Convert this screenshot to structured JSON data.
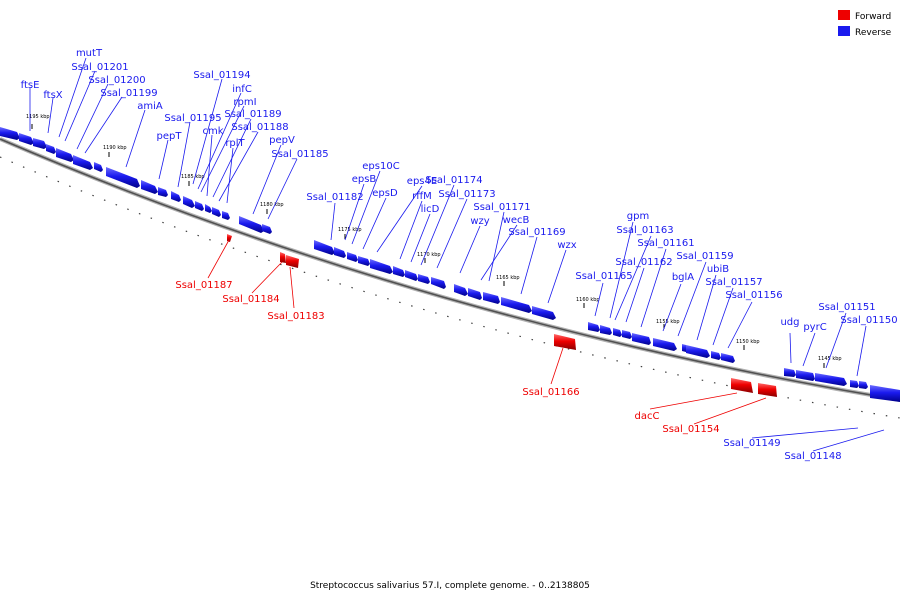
{
  "legend": {
    "forward_label": "Forward",
    "reverse_label": "Reverse",
    "forward_color": "#ee0000",
    "reverse_color": "#1a1aee"
  },
  "caption": "Streptococcus salivarius 57.I, complete genome. - 0..2138805",
  "ticks": [
    {
      "label": "1195 kbp"
    },
    {
      "label": "1190 kbp"
    },
    {
      "label": "1185 kbp"
    },
    {
      "label": "1180 kbp"
    },
    {
      "label": "1175 kbp"
    },
    {
      "label": "1170 kbp"
    },
    {
      "label": "1165 kbp"
    },
    {
      "label": "1160 kbp"
    },
    {
      "label": "1155 kbp"
    },
    {
      "label": "1150 kbp"
    },
    {
      "label": "1145 kbp"
    }
  ],
  "reverse_labels": [
    {
      "text": "ftsE"
    },
    {
      "text": "ftsX"
    },
    {
      "text": "mutT"
    },
    {
      "text": "Ssal_01201"
    },
    {
      "text": "Ssal_01200"
    },
    {
      "text": "Ssal_01199"
    },
    {
      "text": "amiA"
    },
    {
      "text": "Ssal_01194"
    },
    {
      "text": "infC"
    },
    {
      "text": "rpmI"
    },
    {
      "text": "Ssal_01195"
    },
    {
      "text": "pepT"
    },
    {
      "text": "Ssal_01189"
    },
    {
      "text": "cmk"
    },
    {
      "text": "Ssal_01188"
    },
    {
      "text": "rplT"
    },
    {
      "text": "pepV"
    },
    {
      "text": "Ssal_01185"
    },
    {
      "text": "eps10C"
    },
    {
      "text": "epsB"
    },
    {
      "text": "eps4E"
    },
    {
      "text": "Ssal_01174"
    },
    {
      "text": "epsD"
    },
    {
      "text": "rffM"
    },
    {
      "text": "Ssal_01173"
    },
    {
      "text": "Ssal_01182"
    },
    {
      "text": "licD"
    },
    {
      "text": "Ssal_01171"
    },
    {
      "text": "wzy"
    },
    {
      "text": "wecB"
    },
    {
      "text": "Ssal_01169"
    },
    {
      "text": "wzx"
    },
    {
      "text": "gpm"
    },
    {
      "text": "Ssal_01163"
    },
    {
      "text": "Ssal_01161"
    },
    {
      "text": "Ssal_01162"
    },
    {
      "text": "Ssal_01159"
    },
    {
      "text": "ubiB"
    },
    {
      "text": "Ssal_01165"
    },
    {
      "text": "bglA"
    },
    {
      "text": "Ssal_01157"
    },
    {
      "text": "Ssal_01156"
    },
    {
      "text": "Ssal_01151"
    },
    {
      "text": "udg"
    },
    {
      "text": "pyrC"
    },
    {
      "text": "Ssal_01150"
    }
  ],
  "forward_labels": [
    {
      "text": "Ssal_01187"
    },
    {
      "text": "Ssal_01184"
    },
    {
      "text": "Ssal_01183"
    },
    {
      "text": "Ssal_01166"
    },
    {
      "text": "dacC"
    },
    {
      "text": "Ssal_01154"
    }
  ],
  "misc_labels": [
    {
      "text": "Ssal_01149"
    },
    {
      "text": "Ssal_01148"
    }
  ]
}
